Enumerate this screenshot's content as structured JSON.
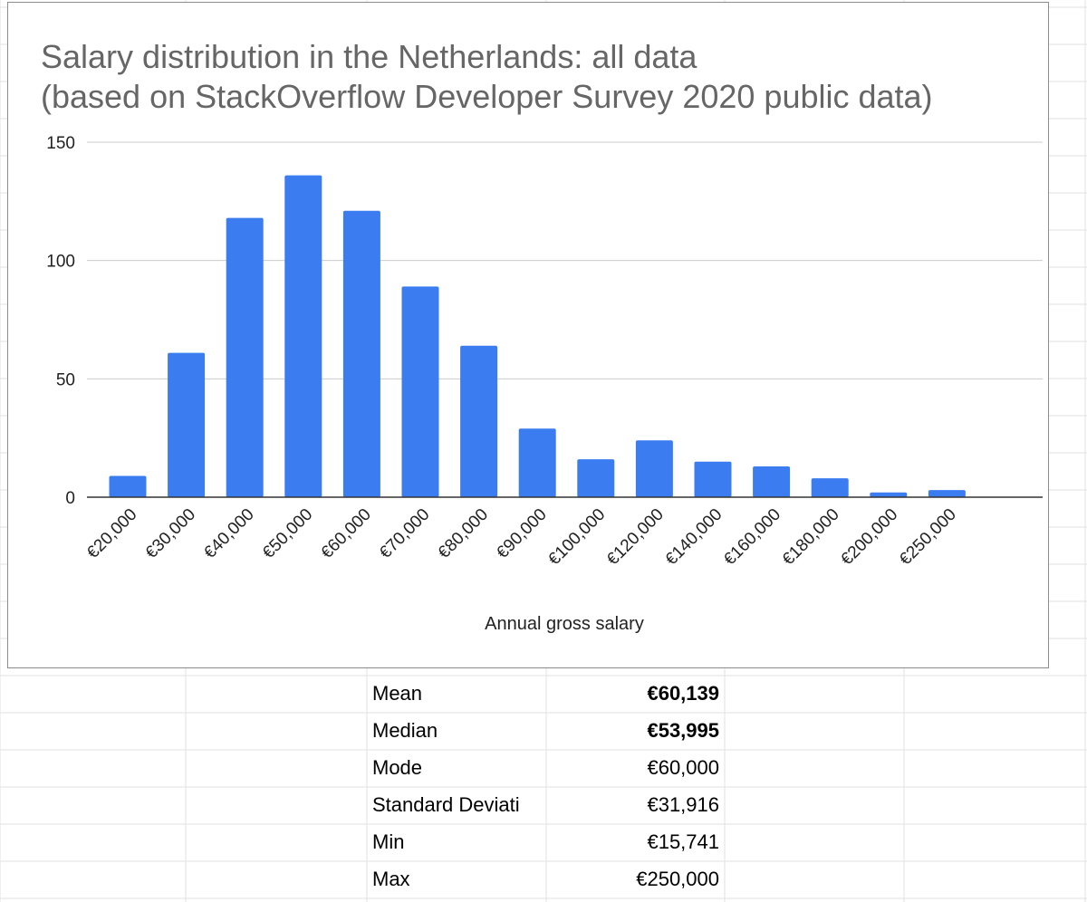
{
  "chart_data": {
    "type": "bar",
    "title": "Salary distribution in the Netherlands: all data",
    "subtitle": "(based on StackOverflow Developer Survey 2020 public data)",
    "xlabel": "Annual gross salary",
    "ylabel": "",
    "ylim": [
      0,
      150
    ],
    "yticks": [
      0,
      50,
      100,
      150
    ],
    "grid": true,
    "legend": "none",
    "bar_color": "#3b7cf0",
    "categories": [
      "€20,000",
      "€30,000",
      "€40,000",
      "€50,000",
      "€60,000",
      "€70,000",
      "€80,000",
      "€90,000",
      "€100,000",
      "€120,000",
      "€140,000",
      "€160,000",
      "€180,000",
      "€200,000",
      "€250,000"
    ],
    "values": [
      9,
      61,
      118,
      136,
      121,
      89,
      64,
      29,
      16,
      24,
      15,
      13,
      8,
      2,
      3
    ]
  },
  "stats": {
    "rows": [
      {
        "label": "Mean",
        "value": "€60,139",
        "bold": true
      },
      {
        "label": "Median",
        "value": "€53,995",
        "bold": true
      },
      {
        "label": "Mode",
        "value": "€60,000",
        "bold": false
      },
      {
        "label": "Standard Deviati",
        "value": "€31,916",
        "bold": false
      },
      {
        "label": "Min",
        "value": "€15,741",
        "bold": false
      },
      {
        "label": "Max",
        "value": "€250,000",
        "bold": false
      }
    ]
  }
}
